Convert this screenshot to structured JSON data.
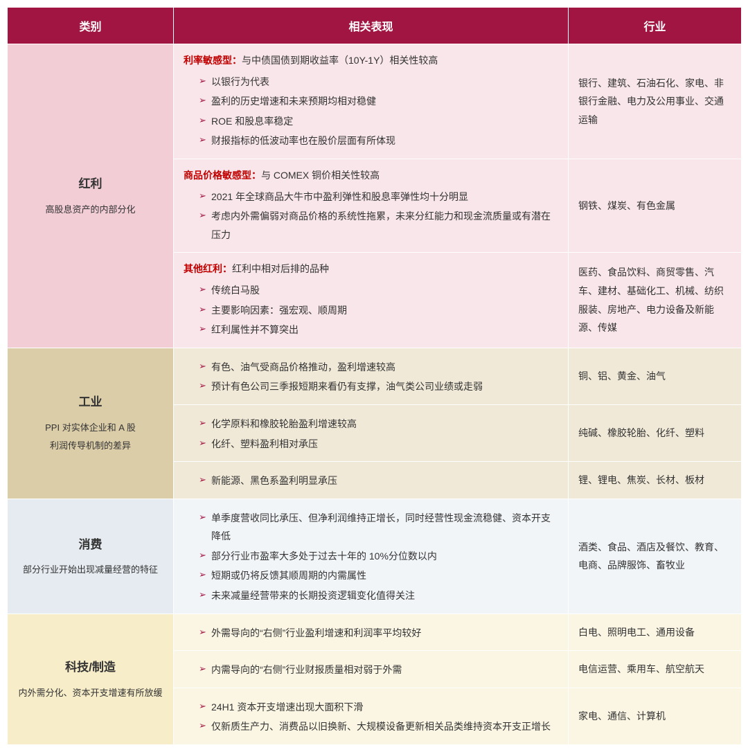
{
  "colors": {
    "header_bg": "#a11542",
    "header_fg": "#ffffff",
    "label_red": "#c00000",
    "bullet": "#a11542",
    "bg_pink": "#f2cdd6",
    "bg_pink_light": "#f8e6ea",
    "bg_tan": "#dccda9",
    "bg_tan_light": "#f0e9d8",
    "bg_blue": "#e5ebf0",
    "bg_blue_light": "#f2f5f8",
    "bg_cream": "#f7edc9",
    "bg_cream_light": "#fbf6e4"
  },
  "headers": {
    "category": "类别",
    "performance": "相关表现",
    "industry": "行业"
  },
  "rows": {
    "hongli": {
      "title": "红利",
      "subtitle": "高股息资产的内部分化",
      "sub1": {
        "label": "利率敏感型：",
        "desc": "与中债国债到期收益率（10Y-1Y）相关性较高",
        "bullets": [
          "以银行为代表",
          "盈利的历史增速和未来预期均相对稳健",
          "ROE 和股息率稳定",
          "财报指标的低波动率也在股价层面有所体现"
        ],
        "industry": "银行、建筑、石油石化、家电、非银行金融、电力及公用事业、交通运输"
      },
      "sub2": {
        "label": "商品价格敏感型：",
        "desc": "与 COMEX 铜价相关性较高",
        "bullets": [
          "2021 年全球商品大牛市中盈利弹性和股息率弹性均十分明显",
          "考虑内外需偏弱对商品价格的系统性拖累，未来分红能力和现金流质量或有潜在压力"
        ],
        "industry": "钢铁、煤炭、有色金属"
      },
      "sub3": {
        "label": "其他红利：",
        "desc": "红利中相对后排的品种",
        "bullets": [
          "传统白马股",
          "主要影响因素：强宏观、顺周期",
          "红利属性并不算突出"
        ],
        "industry": "医药、食品饮料、商贸零售、汽车、建材、基础化工、机械、纺织服装、房地产、电力设备及新能源、传媒"
      }
    },
    "gongye": {
      "title": "工业",
      "subtitle1": "PPI 对实体企业和 A 股",
      "subtitle2": "利润传导机制的差异",
      "sub1": {
        "bullets": [
          "有色、油气受商品价格推动，盈利增速较高",
          "预计有色公司三季报短期来看仍有支撑，油气类公司业绩或走弱"
        ],
        "industry": "铜、铝、黄金、油气"
      },
      "sub2": {
        "bullets": [
          "化学原料和橡胶轮胎盈利增速较高",
          "化纤、塑料盈利相对承压"
        ],
        "industry": "纯碱、橡胶轮胎、化纤、塑料"
      },
      "sub3": {
        "bullets": [
          "新能源、黑色系盈利明显承压"
        ],
        "industry": "锂、锂电、焦炭、长材、板材"
      }
    },
    "xiaofei": {
      "title": "消费",
      "subtitle": "部分行业开始出现减量经营的特征",
      "sub1": {
        "bullets": [
          "单季度营收同比承压、但净利润维持正增长，同时经营性现金流稳健、资本开支降低",
          "部分行业市盈率大多处于过去十年的 10%分位数以内",
          "短期或仍将反馈其顺周期的内需属性",
          "未来减量经营带来的长期投资逻辑变化值得关注"
        ],
        "industry": "酒类、食品、酒店及餐饮、教育、电商、品牌服饰、畜牧业"
      }
    },
    "keji": {
      "title": "科技/制造",
      "subtitle": "内外需分化、资本开支增速有所放缓",
      "sub1": {
        "bullets": [
          "外需导向的“右侧”行业盈利增速和利润率平均较好"
        ],
        "industry": "白电、照明电工、通用设备"
      },
      "sub2": {
        "bullets": [
          "内需导向的“右侧”行业财报质量相对弱于外需"
        ],
        "industry": "电信运营、乘用车、航空航天"
      },
      "sub3": {
        "bullets": [
          "24H1 资本开支增速出现大面积下滑",
          "仅新质生产力、消费品以旧换新、大规模设备更新相关品类维持资本开支正增长"
        ],
        "industry": "家电、通信、计算机"
      }
    }
  }
}
